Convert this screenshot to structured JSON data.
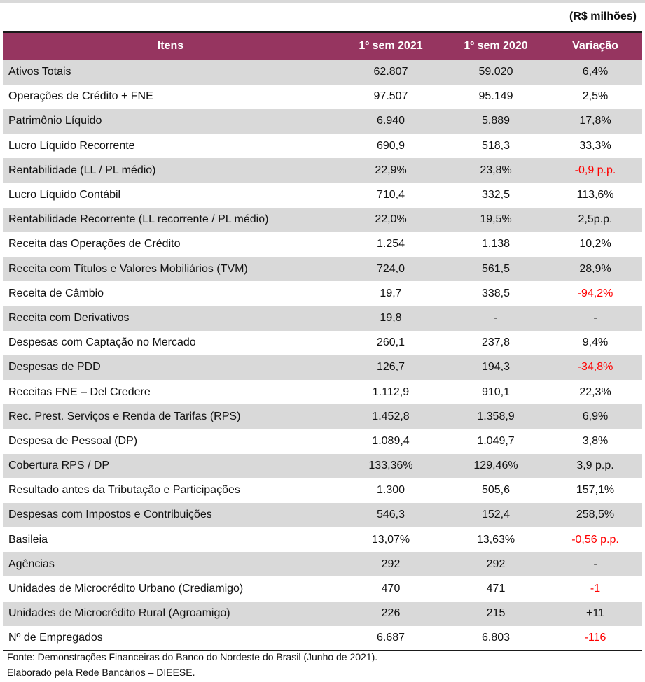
{
  "unit_label": "(R$ milhões)",
  "columns": [
    "Itens",
    "1º sem 2021",
    "1º sem 2020",
    "Variação"
  ],
  "rows": [
    {
      "item": "Ativos Totais",
      "s2021": "62.807",
      "s2020": "59.020",
      "var": "6,4%",
      "neg": false
    },
    {
      "item": "Operações de Crédito + FNE",
      "s2021": "97.507",
      "s2020": "95.149",
      "var": "2,5%",
      "neg": false
    },
    {
      "item": "Patrimônio Líquido",
      "s2021": "6.940",
      "s2020": "5.889",
      "var": "17,8%",
      "neg": false
    },
    {
      "item": "Lucro Líquido Recorrente",
      "s2021": "690,9",
      "s2020": "518,3",
      "var": "33,3%",
      "neg": false
    },
    {
      "item": "Rentabilidade (LL / PL médio)",
      "s2021": "22,9%",
      "s2020": "23,8%",
      "var": "-0,9 p.p.",
      "neg": true
    },
    {
      "item": "Lucro Líquido Contábil",
      "s2021": "710,4",
      "s2020": "332,5",
      "var": "113,6%",
      "neg": false
    },
    {
      "item": "Rentabilidade Recorrente (LL recorrente / PL médio)",
      "s2021": "22,0%",
      "s2020": "19,5%",
      "var": "2,5p.p.",
      "neg": false
    },
    {
      "item": "Receita das Operações de Crédito",
      "s2021": "1.254",
      "s2020": "1.138",
      "var": "10,2%",
      "neg": false
    },
    {
      "item": "Receita com Títulos e Valores Mobiliários (TVM)",
      "s2021": "724,0",
      "s2020": "561,5",
      "var": "28,9%",
      "neg": false
    },
    {
      "item": "Receita de Câmbio",
      "s2021": "19,7",
      "s2020": "338,5",
      "var": "-94,2%",
      "neg": true
    },
    {
      "item": "Receita com Derivativos",
      "s2021": "19,8",
      "s2020": "-",
      "var": "-",
      "neg": false
    },
    {
      "item": "Despesas com Captação no Mercado",
      "s2021": "260,1",
      "s2020": "237,8",
      "var": "9,4%",
      "neg": false
    },
    {
      "item": "Despesas de PDD",
      "s2021": "126,7",
      "s2020": "194,3",
      "var": "-34,8%",
      "neg": true
    },
    {
      "item": "Receitas FNE – Del Credere",
      "s2021": "1.112,9",
      "s2020": "910,1",
      "var": "22,3%",
      "neg": false
    },
    {
      "item": "Rec. Prest. Serviços e Renda de Tarifas (RPS)",
      "s2021": "1.452,8",
      "s2020": "1.358,9",
      "var": "6,9%",
      "neg": false
    },
    {
      "item": "Despesa de Pessoal (DP)",
      "s2021": "1.089,4",
      "s2020": "1.049,7",
      "var": "3,8%",
      "neg": false
    },
    {
      "item": "Cobertura RPS / DP",
      "s2021": "133,36%",
      "s2020": "129,46%",
      "var": "3,9 p.p.",
      "neg": false
    },
    {
      "item": "Resultado antes da Tributação e Participações",
      "s2021": "1.300",
      "s2020": "505,6",
      "var": "157,1%",
      "neg": false
    },
    {
      "item": "Despesas com Impostos e Contribuições",
      "s2021": "546,3",
      "s2020": "152,4",
      "var": "258,5%",
      "neg": false
    },
    {
      "item": "Basileia",
      "s2021": "13,07%",
      "s2020": "13,63%",
      "var": "-0,56 p.p.",
      "neg": true
    },
    {
      "item": "Agências",
      "s2021": "292",
      "s2020": "292",
      "var": "-",
      "neg": false
    },
    {
      "item": "Unidades de Microcrédito Urbano (Crediamigo)",
      "s2021": "470",
      "s2020": "471",
      "var": "-1",
      "neg": true
    },
    {
      "item": "Unidades de Microcrédito Rural (Agroamigo)",
      "s2021": "226",
      "s2020": "215",
      "var": "+11",
      "neg": false
    },
    {
      "item": "Nº de Empregados",
      "s2021": "6.687",
      "s2020": "6.803",
      "var": "-116",
      "neg": true
    }
  ],
  "footer": {
    "source": "Fonte: Demonstrações Financeiras do Banco do Nordeste do Brasil (Junho de 2021).",
    "credit": "Elaborado pela Rede Bancários – DIEESE."
  },
  "colors": {
    "header_bg": "#963560",
    "shade": "#d9d9d9",
    "negative": "#ff0000"
  }
}
